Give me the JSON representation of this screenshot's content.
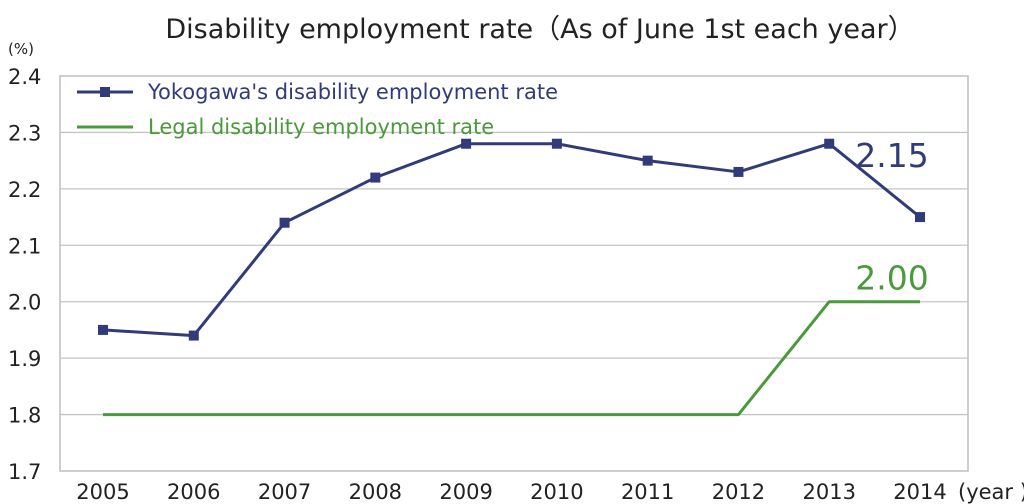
{
  "chart_data": {
    "type": "line",
    "title": "Disability employment rate（As of June 1st each year）",
    "ylabel": "(%)",
    "xlabel": "(year )",
    "categories": [
      "2005",
      "2006",
      "2007",
      "2008",
      "2009",
      "2010",
      "2011",
      "2012",
      "2013",
      "2014"
    ],
    "ylim": [
      1.7,
      2.4
    ],
    "yticks": [
      "1.7",
      "1.8",
      "1.9",
      "2.0",
      "2.1",
      "2.2",
      "2.3",
      "2.4"
    ],
    "grid": true,
    "legend_position": "top-left",
    "series": [
      {
        "name": "Yokogawa's disability employment rate",
        "color": "#313b7a",
        "marker": "square",
        "values": [
          1.95,
          1.94,
          2.14,
          2.22,
          2.28,
          2.28,
          2.25,
          2.23,
          2.28,
          2.15
        ],
        "end_label": "2.15"
      },
      {
        "name": "Legal disability employment rate",
        "color": "#4a9a3c",
        "marker": "none",
        "values": [
          1.8,
          1.8,
          1.8,
          1.8,
          1.8,
          1.8,
          1.8,
          1.8,
          2.0,
          2.0
        ],
        "end_label": "2.00"
      }
    ]
  }
}
